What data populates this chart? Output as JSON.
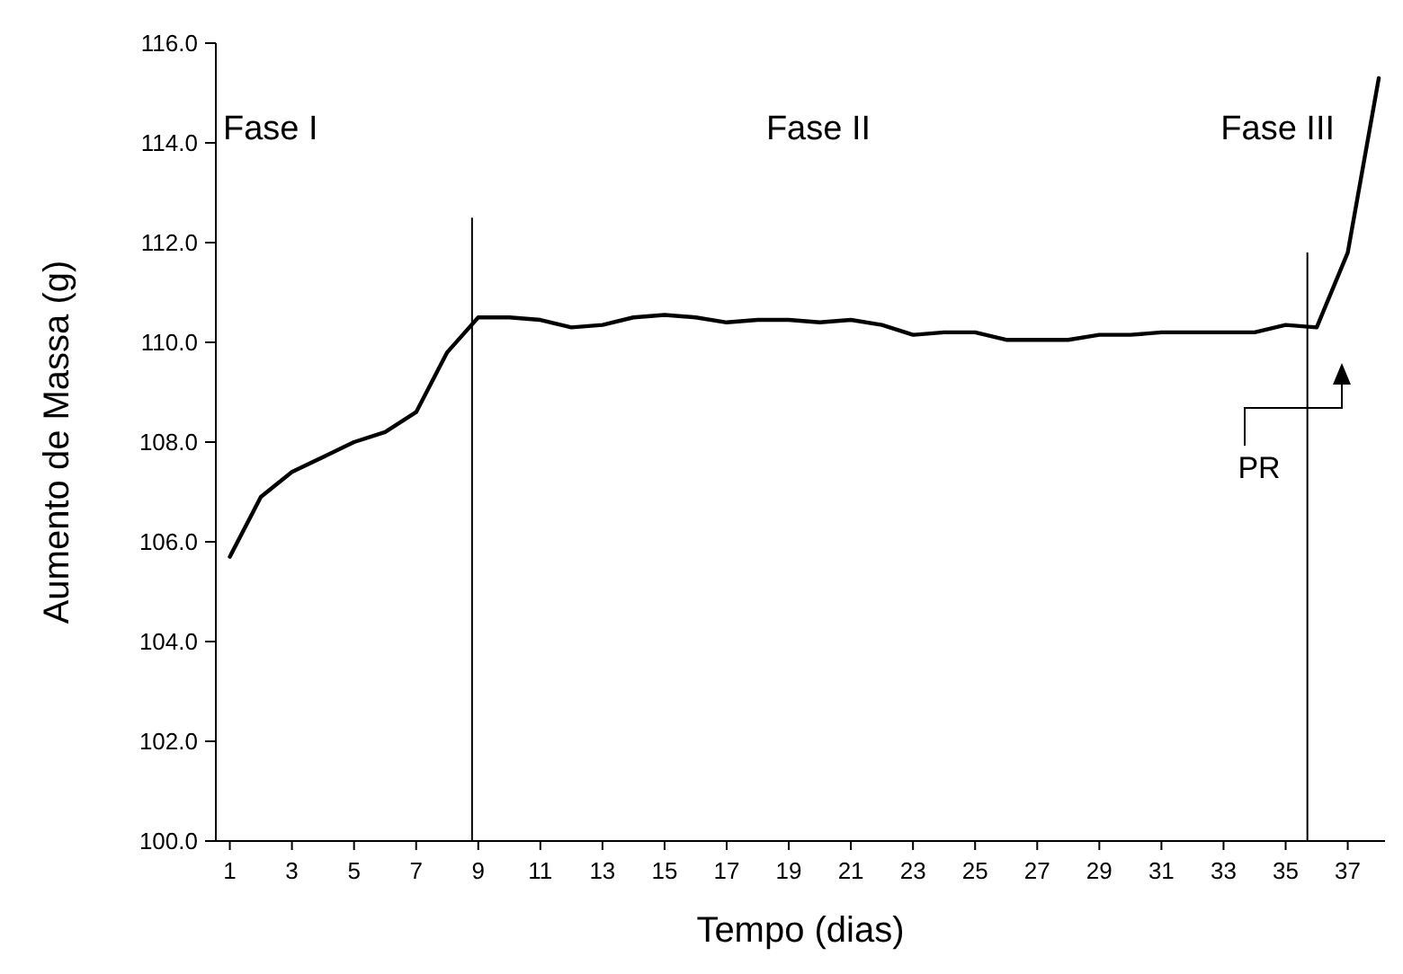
{
  "chart_data": {
    "type": "line",
    "xlabel": "Tempo (dias)",
    "ylabel": "Aumento de Massa (g)",
    "x": [
      1,
      2,
      3,
      4,
      5,
      6,
      7,
      8,
      9,
      10,
      11,
      12,
      13,
      14,
      15,
      16,
      17,
      18,
      19,
      20,
      21,
      22,
      23,
      24,
      25,
      26,
      27,
      28,
      29,
      30,
      31,
      32,
      33,
      34,
      35,
      36,
      37,
      38
    ],
    "series": [
      {
        "color": "#000000",
        "values": [
          105.7,
          106.9,
          107.4,
          107.7,
          108.0,
          108.2,
          108.6,
          109.8,
          110.5,
          110.5,
          110.45,
          110.3,
          110.35,
          110.5,
          110.55,
          110.5,
          110.4,
          110.45,
          110.45,
          110.4,
          110.45,
          110.35,
          110.15,
          110.2,
          110.2,
          110.05,
          110.05,
          110.05,
          110.15,
          110.15,
          110.2,
          110.2,
          110.2,
          110.2,
          110.35,
          110.3,
          111.8,
          115.3
        ]
      }
    ],
    "xlim": [
      0.55,
      38.2
    ],
    "xticks": [
      1,
      3,
      5,
      7,
      9,
      11,
      13,
      15,
      17,
      19,
      21,
      23,
      25,
      27,
      29,
      31,
      33,
      35,
      37
    ],
    "ylim": [
      100,
      116
    ],
    "yticks": [
      {
        "value": 100,
        "label": "100.0"
      },
      {
        "value": 102,
        "label": "102.0"
      },
      {
        "value": 104,
        "label": "104.0"
      },
      {
        "value": 106,
        "label": "106.0"
      },
      {
        "value": 108,
        "label": "108.0"
      },
      {
        "value": 110,
        "label": "110.0"
      },
      {
        "value": 112,
        "label": "112.0"
      },
      {
        "value": 114,
        "label": "114.0"
      },
      {
        "value": 116,
        "label": "116.0"
      }
    ],
    "ref_lines": [
      {
        "axis": "x",
        "value": 8.8,
        "color": "#000000"
      },
      {
        "axis": "x",
        "value": 35.7,
        "color": "#000000"
      }
    ],
    "annotations": [
      "Fase I",
      "Fase II",
      "Fase III",
      "PR"
    ],
    "grid": false,
    "marker": "none",
    "line_style": "solid"
  }
}
